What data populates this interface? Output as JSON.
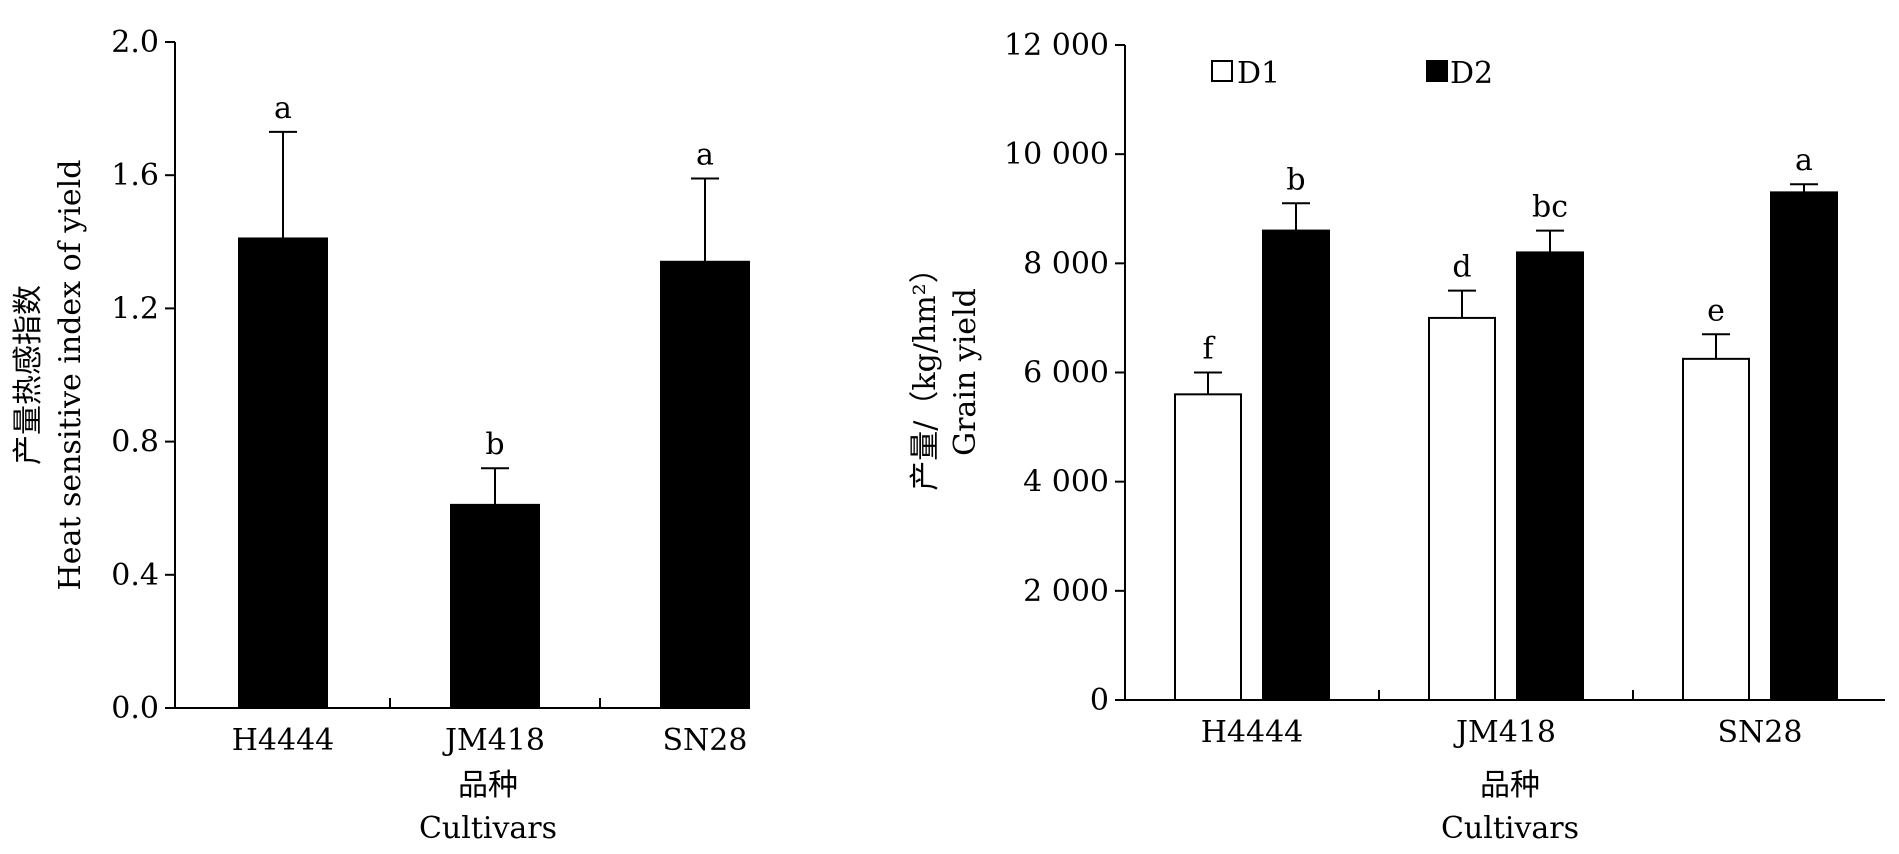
{
  "chart_data": [
    {
      "type": "bar",
      "categories": [
        "H4444",
        "JM418",
        "SN28"
      ],
      "series": [
        {
          "values": [
            1.41,
            0.61,
            1.34
          ],
          "errors": [
            0.32,
            0.11,
            0.25
          ],
          "color": "#000000",
          "letters": [
            "a",
            "b",
            "a"
          ]
        }
      ],
      "ylim": [
        0,
        2.0
      ],
      "yticks": [
        "0.0",
        "0.4",
        "0.8",
        "1.2",
        "1.6",
        "2.0"
      ],
      "ylabel_cn": "产量热感指数",
      "ylabel_en": "Heat sensitive index of yield",
      "xlabel_cn": "品种",
      "xlabel_en": "Cultivars"
    },
    {
      "type": "bar",
      "categories": [
        "H4444",
        "JM418",
        "SN28"
      ],
      "series": [
        {
          "name": "D1",
          "values": [
            5600,
            7000,
            6250
          ],
          "errors": [
            400,
            500,
            450
          ],
          "color": "#ffffff",
          "letters": [
            "f",
            "d",
            "e"
          ]
        },
        {
          "name": "D2",
          "values": [
            8600,
            8200,
            9300
          ],
          "errors": [
            500,
            400,
            150
          ],
          "color": "#000000",
          "letters": [
            "b",
            "bc",
            "a"
          ]
        }
      ],
      "ylim": [
        0,
        12000
      ],
      "yticks": [
        "0",
        "2 000",
        "4 000",
        "6 000",
        "8 000",
        "10 000",
        "12 000"
      ],
      "ylabel_cn": "产量/（kg/hm²）",
      "ylabel_en": "Grain yield",
      "xlabel_cn": "品种",
      "xlabel_en": "Cultivars",
      "legend_position": "top-left"
    }
  ]
}
